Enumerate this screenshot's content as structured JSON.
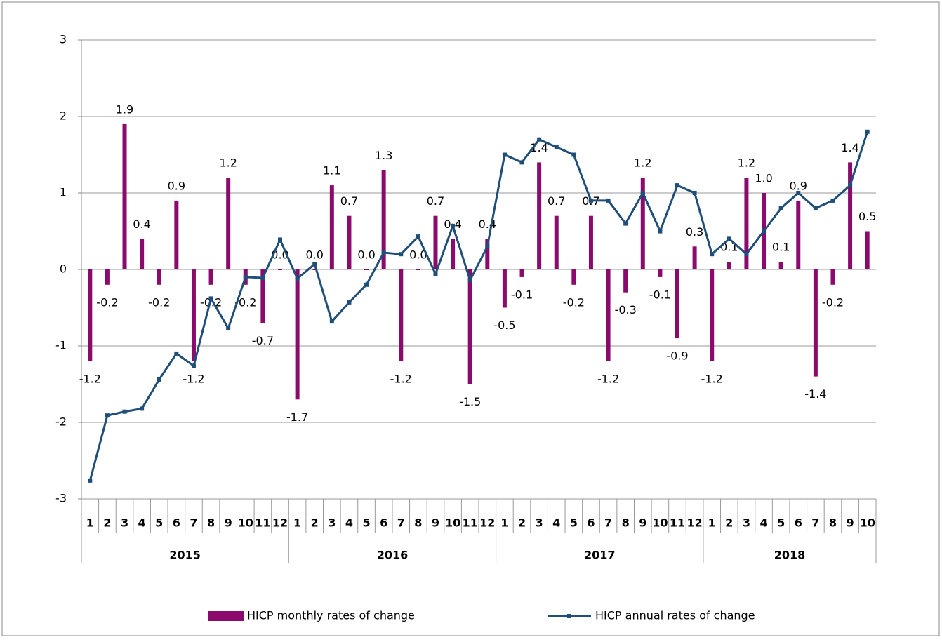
{
  "chart_data": {
    "type": "bar-line",
    "groups": [
      {
        "label": "2015",
        "categories": [
          "1",
          "2",
          "3",
          "4",
          "5",
          "6",
          "7",
          "8",
          "9",
          "10",
          "11",
          "12"
        ]
      },
      {
        "label": "2016",
        "categories": [
          "1",
          "2",
          "3",
          "4",
          "5",
          "6",
          "7",
          "8",
          "9",
          "10",
          "11",
          "12"
        ]
      },
      {
        "label": "2017",
        "categories": [
          "1",
          "2",
          "3",
          "4",
          "5",
          "6",
          "7",
          "8",
          "9",
          "10",
          "11",
          "12"
        ]
      },
      {
        "label": "2018",
        "categories": [
          "1",
          "2",
          "3",
          "4",
          "5",
          "6",
          "7",
          "8",
          "9",
          "10"
        ]
      }
    ],
    "series": [
      {
        "name": "HICP monthly rates of change",
        "kind": "bar",
        "color": "#8b0a6e",
        "values": [
          -1.2,
          -0.2,
          1.9,
          0.4,
          -0.2,
          0.9,
          -1.2,
          -0.2,
          1.2,
          -0.2,
          -0.7,
          0,
          -1.7,
          0,
          1.1,
          0.7,
          0,
          1.3,
          -1.2,
          0,
          0.7,
          0.4,
          -1.5,
          0.4,
          -0.5,
          -0.1,
          1.4,
          0.7,
          -0.2,
          0.7,
          -1.2,
          -0.3,
          1.2,
          -0.1,
          -0.9,
          0.3,
          -1.2,
          0.1,
          1.2,
          1,
          0.1,
          0.9,
          -1.4,
          -0.2,
          1.4,
          0.5
        ],
        "value_labels": [
          "-1.2",
          "-0.2",
          "1.9",
          "0.4",
          "-0.2",
          "0.9",
          "-1.2",
          "-0.2",
          "1.2",
          "-0.2",
          "-0.7",
          "0.0",
          "-1.7",
          "0.0",
          "1.1",
          "0.7",
          "0.0",
          "1.3",
          "-1.2",
          "0.0",
          "0.7",
          "0.4",
          "-1.5",
          "0.4",
          "-0.5",
          "-0.1",
          "1.4",
          "0.7",
          "-0.2",
          "0.7",
          "-1.2",
          "-0.3",
          "1.2",
          "-0.1",
          "-0.9",
          "0.3",
          "-1.2",
          "0.1",
          "1.2",
          "1.0",
          "0.1",
          "0.9",
          "-1.4",
          "-0.2",
          "1.4",
          "0.5"
        ]
      },
      {
        "name": "HICP annual rates of change",
        "kind": "line",
        "color": "#1f4e79",
        "values": [
          -2.76,
          -1.91,
          -1.86,
          -1.82,
          -1.44,
          -1.1,
          -1.26,
          -0.38,
          -0.77,
          -0.1,
          -0.11,
          0.39,
          -0.12,
          0.07,
          -0.68,
          -0.43,
          -0.2,
          0.22,
          0.2,
          0.43,
          -0.06,
          0.57,
          -0.14,
          0.3,
          1.5,
          1.4,
          1.7,
          1.6,
          1.5,
          0.9,
          0.9,
          0.6,
          1.0,
          0.5,
          1.1,
          1.0,
          0.2,
          0.4,
          0.2,
          0.5,
          0.8,
          1.0,
          0.8,
          0.9,
          1.1,
          1.8
        ]
      }
    ],
    "ylim": [
      -3,
      3
    ],
    "yticks": [
      -3,
      -2,
      -1,
      0,
      1,
      2,
      3
    ],
    "grid": true,
    "legend": "bottom"
  }
}
